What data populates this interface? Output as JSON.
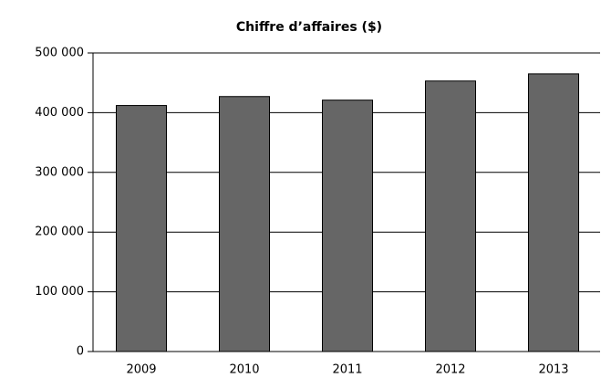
{
  "chart_data": {
    "type": "bar",
    "title": "Chiffre d’affaires ($)",
    "categories": [
      "2009",
      "2010",
      "2011",
      "2012",
      "2013"
    ],
    "values": [
      412000,
      427000,
      421000,
      453000,
      465000
    ],
    "color": "#666666",
    "ylim": [
      0,
      500000
    ],
    "yticks": [
      {
        "value": 0,
        "label": "0"
      },
      {
        "value": 100000,
        "label": "100 000"
      },
      {
        "value": 200000,
        "label": "200 000"
      },
      {
        "value": 300000,
        "label": "300 000"
      },
      {
        "value": 400000,
        "label": "400 000"
      },
      {
        "value": 500000,
        "label": "500 000"
      }
    ],
    "grid": true
  }
}
